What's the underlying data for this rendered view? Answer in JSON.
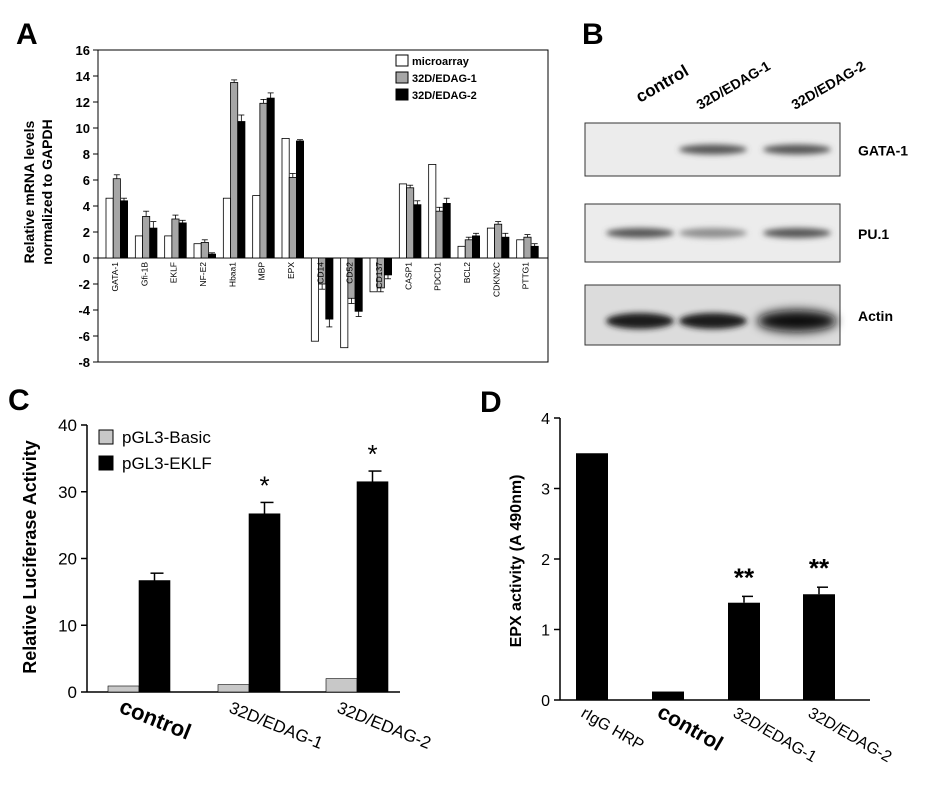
{
  "panel_labels": {
    "a": "A",
    "b": "B",
    "c": "C",
    "d": "D"
  },
  "colors": {
    "microarray": "#ffffff",
    "edag1": "#a6a6a6",
    "edag2": "#000000",
    "basic": "#c8c8c8",
    "eklf": "#000000",
    "axis": "#000000"
  },
  "chart_data": [
    {
      "panel": "A",
      "type": "bar",
      "ylabel_lines": [
        "Relative mRNA levels",
        "normalized to GAPDH"
      ],
      "ylim": [
        -8,
        16
      ],
      "yticks": [
        -8,
        -6,
        -4,
        -2,
        0,
        2,
        4,
        6,
        8,
        10,
        12,
        14,
        16
      ],
      "legend_position": "top-right",
      "categories": [
        "GATA-1",
        "Gfi-1B",
        "EKLF",
        "NF-E2",
        "Hbaa1",
        "MBP",
        "EPX",
        "CD14",
        "CD52",
        "CD137",
        "CASP1",
        "PDCD1",
        "BCL2",
        "CDKN2C",
        "PTTG1"
      ],
      "series": [
        {
          "name": "microarray",
          "values": [
            4.6,
            1.7,
            1.7,
            1.1,
            4.6,
            4.8,
            9.2,
            -6.4,
            -6.9,
            -2.6,
            5.7,
            7.2,
            0.9,
            2.3,
            1.4
          ]
        },
        {
          "name": "32D/EDAG-1",
          "values": [
            6.1,
            3.2,
            3.0,
            1.2,
            13.5,
            11.9,
            6.2,
            -2.0,
            -3.1,
            -2.3,
            5.4,
            3.6,
            1.4,
            2.6,
            1.6
          ]
        },
        {
          "name": "32D/EDAG-2",
          "values": [
            4.4,
            2.3,
            2.7,
            0.3,
            10.5,
            12.3,
            9.0,
            -4.7,
            -4.1,
            -1.3,
            4.1,
            4.2,
            1.7,
            1.6,
            0.9
          ]
        }
      ],
      "errors": [
        [
          0,
          0,
          0,
          0,
          0,
          0,
          0,
          0,
          0,
          0,
          0,
          0,
          0,
          0,
          0
        ],
        [
          0.3,
          0.4,
          0.3,
          0.2,
          0.2,
          0.3,
          0.3,
          0.4,
          0.4,
          0.3,
          0.2,
          0.3,
          0.2,
          0.2,
          0.2
        ],
        [
          0.2,
          0.5,
          0.2,
          0.1,
          0.5,
          0.4,
          0.1,
          0.6,
          0.4,
          0.3,
          0.3,
          0.4,
          0.2,
          0.3,
          0.2
        ]
      ]
    },
    {
      "panel": "C",
      "type": "bar",
      "ylabel": "Relative Luciferase Activity",
      "ylim": [
        0,
        40
      ],
      "yticks": [
        0,
        10,
        20,
        30,
        40
      ],
      "legend_position": "top-left",
      "categories": [
        "control",
        "32D/EDAG-1",
        "32D/EDAG-2"
      ],
      "series": [
        {
          "name": "pGL3-Basic",
          "values": [
            0.9,
            1.1,
            2.0
          ],
          "errors": [
            0,
            0,
            0
          ]
        },
        {
          "name": "pGL3-EKLF",
          "values": [
            16.7,
            26.7,
            31.5
          ],
          "errors": [
            1.1,
            1.7,
            1.6
          ]
        }
      ],
      "annotations": [
        "",
        "*",
        "*"
      ]
    },
    {
      "panel": "D",
      "type": "bar",
      "ylabel": "EPX activity (A 490nm)",
      "ylim": [
        0,
        4
      ],
      "yticks": [
        0,
        1,
        2,
        3,
        4
      ],
      "categories": [
        "rIgG HRP",
        "control",
        "32D/EDAG-1",
        "32D/EDAG-2"
      ],
      "values": [
        3.5,
        0.12,
        1.38,
        1.5
      ],
      "errors": [
        0,
        0,
        0.09,
        0.1
      ],
      "annotations": [
        "",
        "",
        "**",
        "**"
      ]
    }
  ],
  "western_blot": {
    "columns": [
      "control",
      "32D/EDAG-1",
      "32D/EDAG-2"
    ],
    "rows": [
      {
        "label": "GATA-1",
        "band_intensity": [
          0.0,
          0.6,
          0.6
        ]
      },
      {
        "label": "PU.1",
        "band_intensity": [
          0.6,
          0.3,
          0.6
        ]
      },
      {
        "label": "Actin",
        "band_intensity": [
          0.9,
          0.9,
          1.0
        ]
      }
    ]
  }
}
